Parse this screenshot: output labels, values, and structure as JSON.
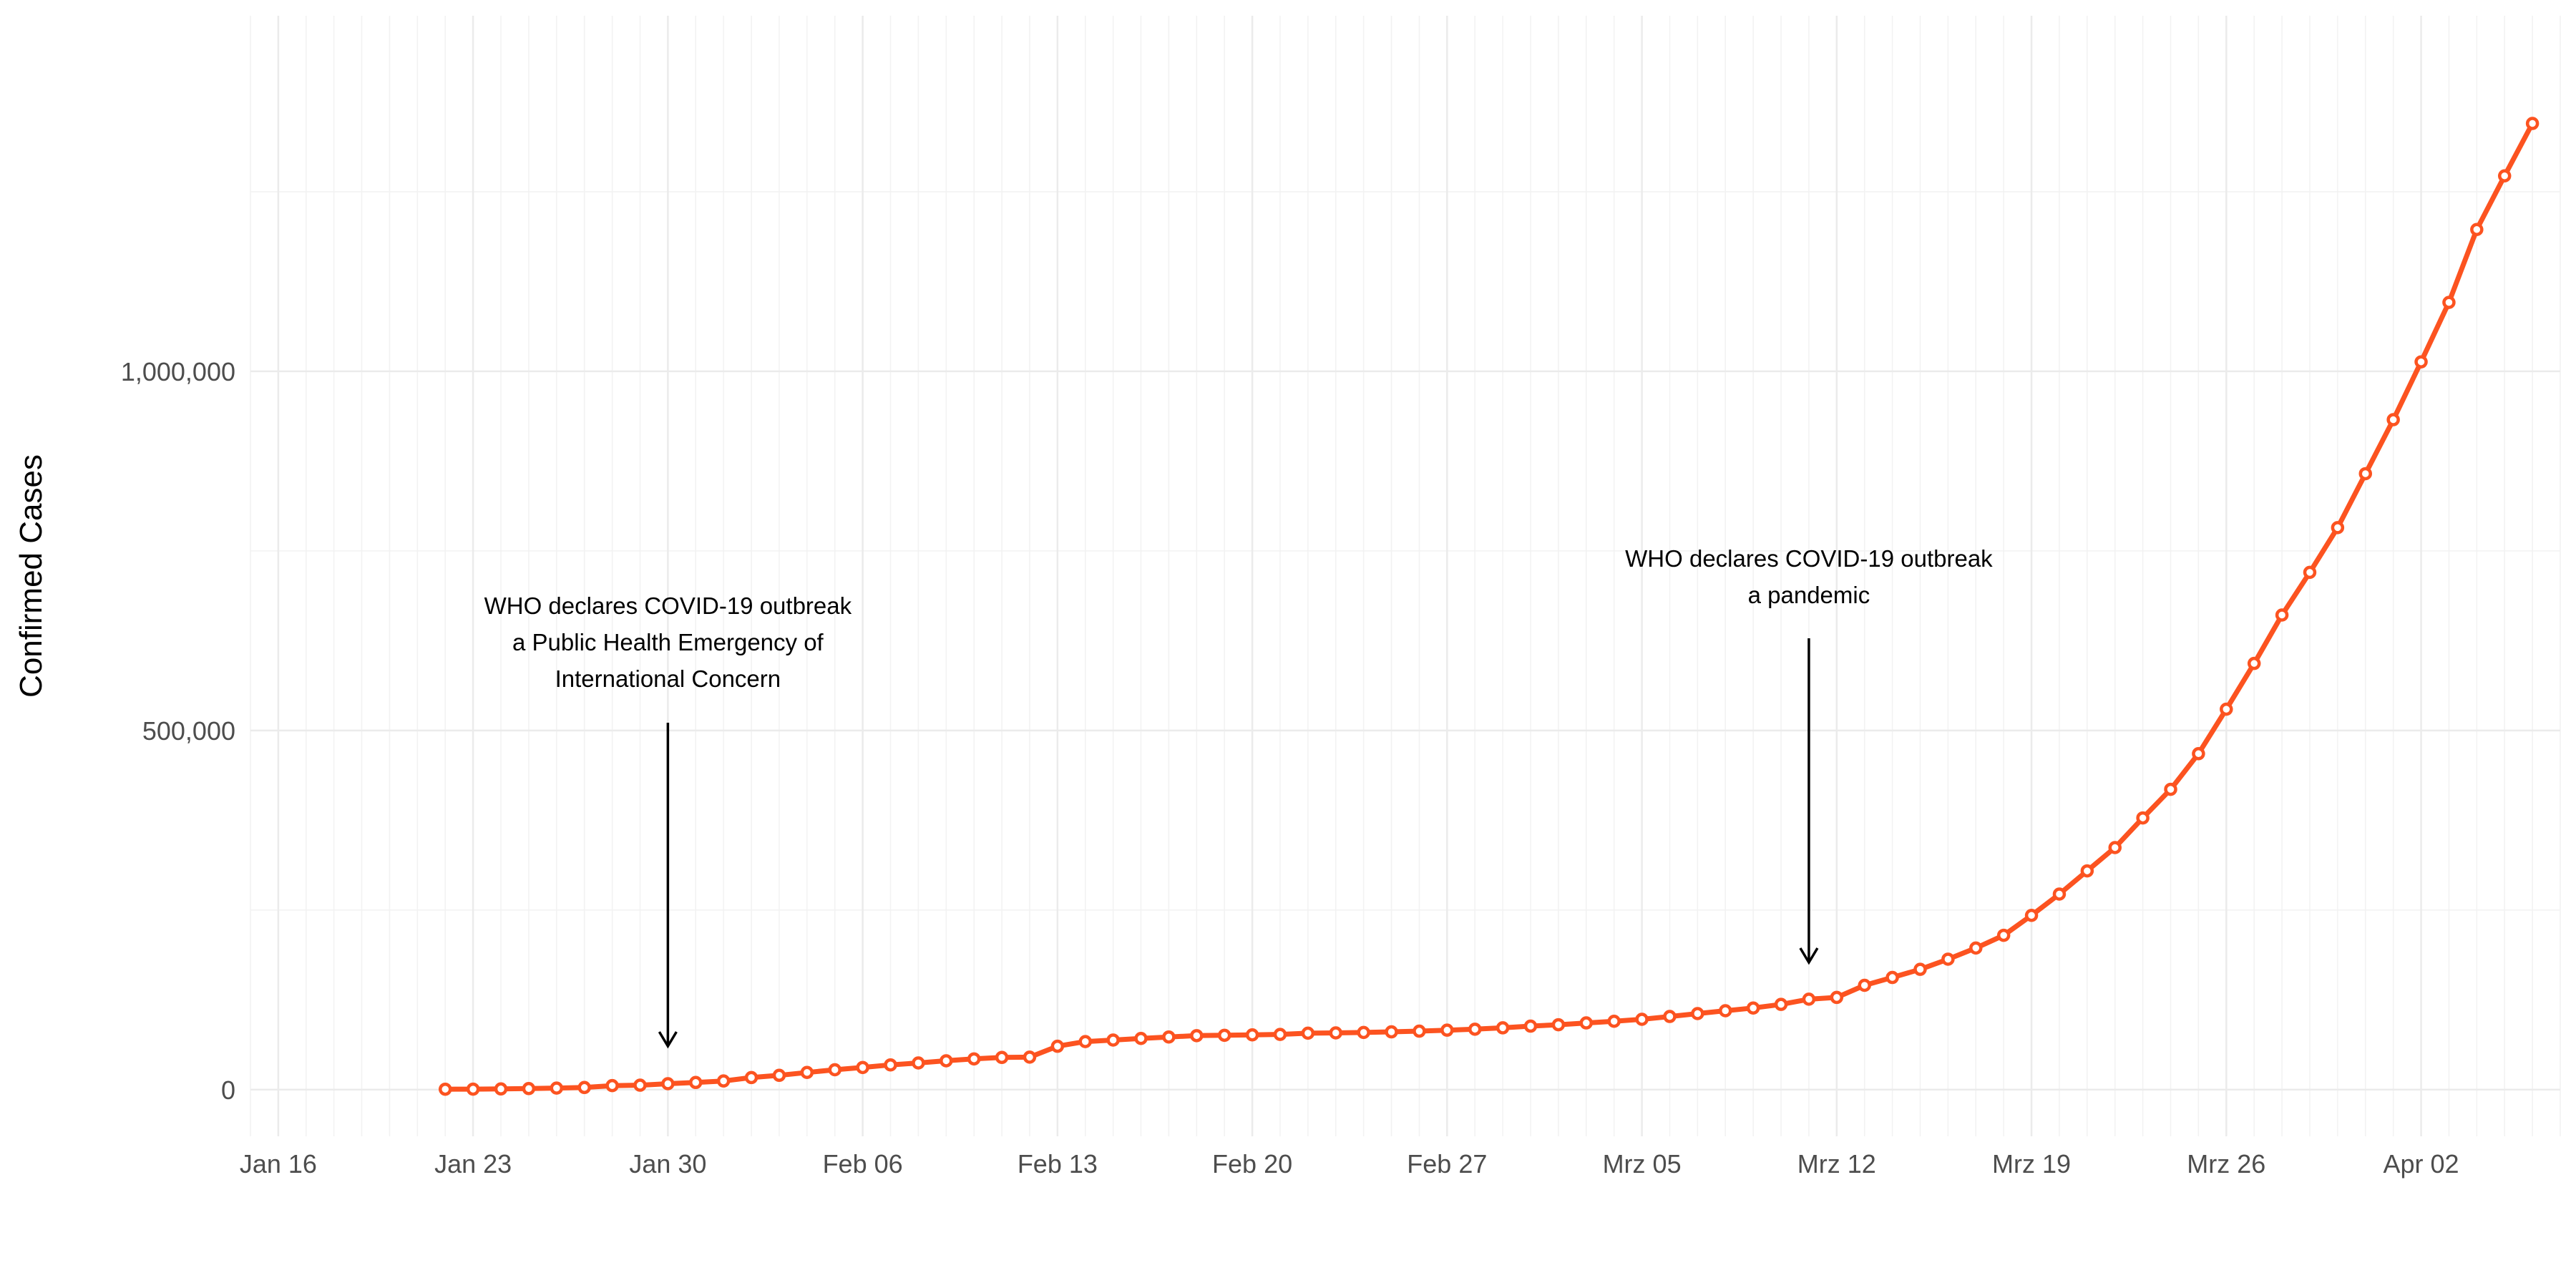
{
  "chart_data": {
    "type": "line",
    "title": "",
    "xlabel": "",
    "ylabel": "Confirmed Cases",
    "x_tick_labels": [
      "Jan 16",
      "Jan 23",
      "Jan 30",
      "Feb 06",
      "Feb 13",
      "Feb 20",
      "Feb 27",
      "Mrz 05",
      "Mrz 12",
      "Mrz 19",
      "Mrz 26",
      "Apr 02"
    ],
    "y_tick_labels": [
      "0",
      "500,000",
      "1,000,000"
    ],
    "y_ticks": [
      0,
      500000,
      1000000
    ],
    "ylim": [
      -65000,
      1495000
    ],
    "xlim": [
      "2020-01-15",
      "2020-04-07"
    ],
    "grid": true,
    "legend": "none",
    "series_color": "#fc5320",
    "x": [
      "2020-01-22",
      "2020-01-23",
      "2020-01-24",
      "2020-01-25",
      "2020-01-26",
      "2020-01-27",
      "2020-01-28",
      "2020-01-29",
      "2020-01-30",
      "2020-01-31",
      "2020-02-01",
      "2020-02-02",
      "2020-02-03",
      "2020-02-04",
      "2020-02-05",
      "2020-02-06",
      "2020-02-07",
      "2020-02-08",
      "2020-02-09",
      "2020-02-10",
      "2020-02-11",
      "2020-02-12",
      "2020-02-13",
      "2020-02-14",
      "2020-02-15",
      "2020-02-16",
      "2020-02-17",
      "2020-02-18",
      "2020-02-19",
      "2020-02-20",
      "2020-02-21",
      "2020-02-22",
      "2020-02-23",
      "2020-02-24",
      "2020-02-25",
      "2020-02-26",
      "2020-02-27",
      "2020-02-28",
      "2020-02-29",
      "2020-03-01",
      "2020-03-02",
      "2020-03-03",
      "2020-03-04",
      "2020-03-05",
      "2020-03-06",
      "2020-03-07",
      "2020-03-08",
      "2020-03-09",
      "2020-03-10",
      "2020-03-11",
      "2020-03-12",
      "2020-03-13",
      "2020-03-14",
      "2020-03-15",
      "2020-03-16",
      "2020-03-17",
      "2020-03-18",
      "2020-03-19",
      "2020-03-20",
      "2020-03-21",
      "2020-03-22",
      "2020-03-23",
      "2020-03-24",
      "2020-03-25",
      "2020-03-26",
      "2020-03-27",
      "2020-03-28",
      "2020-03-29",
      "2020-03-30",
      "2020-03-31",
      "2020-04-01",
      "2020-04-02",
      "2020-04-03",
      "2020-04-04",
      "2020-04-05",
      "2020-04-06"
    ],
    "series": [
      {
        "values": [
          555,
          654,
          941,
          1434,
          2118,
          2927,
          5578,
          6166,
          8234,
          9927,
          12038,
          16787,
          19881,
          23892,
          27635,
          30794,
          34391,
          37120,
          40150,
          42762,
          44802,
          45221,
          60368,
          66885,
          69030,
          71224,
          73258,
          75136,
          75639,
          76197,
          76819,
          78572,
          78958,
          79561,
          80406,
          81388,
          82746,
          84112,
          86011,
          88369,
          90306,
          92840,
          95120,
          97886,
          101801,
          105847,
          109821,
          113590,
          118620,
          125875,
          128352,
          145205,
          156101,
          167454,
          181574,
          197102,
          214821,
          242570,
          272208,
          304507,
          336953,
          378231,
          418041,
          467653,
          529591,
          593291,
          660706,
          720117,
          782365,
          857487,
          932605,
          1013157,
          1095917,
          1197405,
          1272115,
          1345048
        ]
      }
    ],
    "annotations": [
      {
        "date": "2020-01-30",
        "lines": [
          "WHO declares COVID-19 outbreak",
          "a Public Health Emergency of",
          "International Concern"
        ]
      },
      {
        "date": "2020-03-11",
        "lines": [
          "WHO declares COVID-19 outbreak",
          "a pandemic"
        ]
      }
    ]
  }
}
